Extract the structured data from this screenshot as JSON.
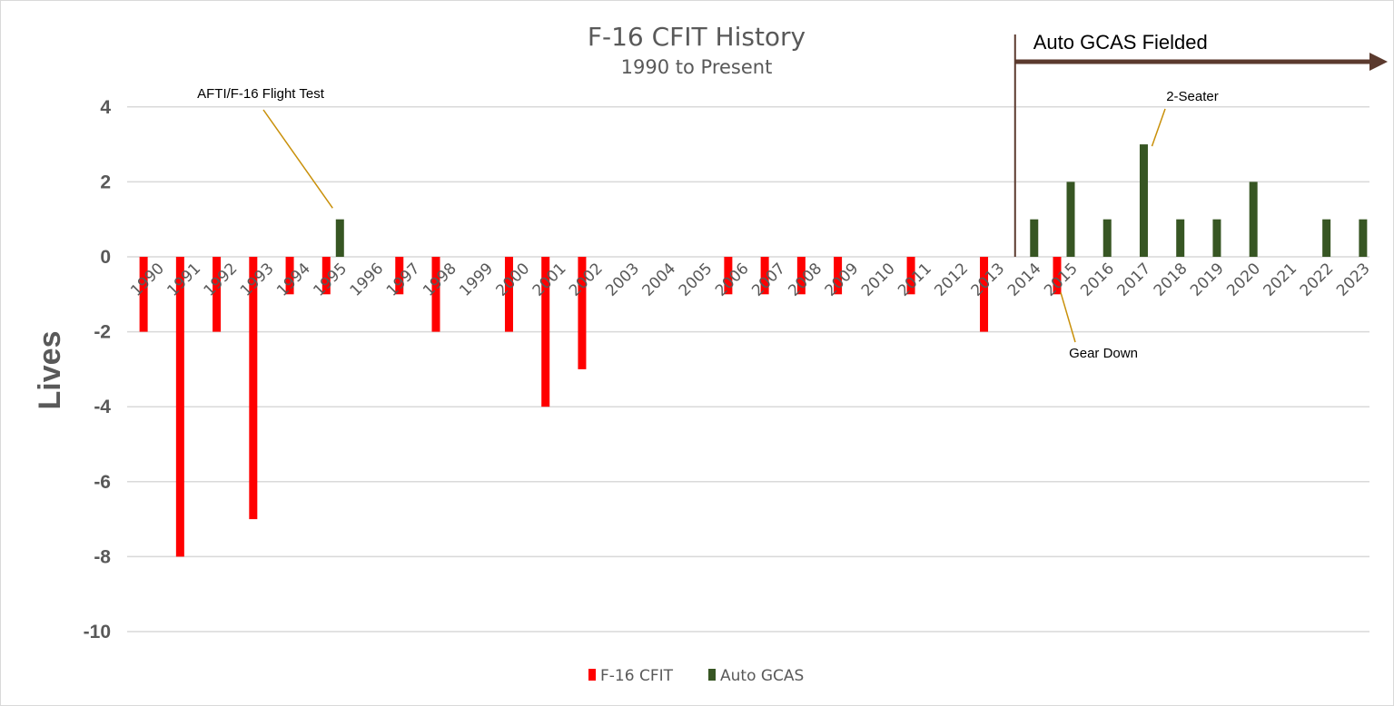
{
  "chart_data": {
    "type": "bar",
    "title": "F-16 CFIT History",
    "subtitle": "1990 to Present",
    "xlabel": "",
    "ylabel": "Lives",
    "ylim": [
      -10,
      4
    ],
    "yticks": [
      4,
      2,
      0,
      -2,
      -4,
      -6,
      -8,
      -10
    ],
    "grid": true,
    "legend_position": "bottom",
    "categories": [
      "1990",
      "1991",
      "1992",
      "1993",
      "1994",
      "1995",
      "1996",
      "1997",
      "1998",
      "1999",
      "2000",
      "2001",
      "2002",
      "2003",
      "2004",
      "2005",
      "2006",
      "2007",
      "2008",
      "2009",
      "2010",
      "2011",
      "2012",
      "2013",
      "2014",
      "2015",
      "2016",
      "2017",
      "2018",
      "2019",
      "2020",
      "2021",
      "2022",
      "2023"
    ],
    "series": [
      {
        "name": "F-16 CFIT",
        "color": "#ff0000",
        "values": [
          -2,
          -8,
          -2,
          -7,
          -1,
          -1,
          0,
          -1,
          -2,
          0,
          -2,
          -4,
          -3,
          0,
          0,
          0,
          -1,
          -1,
          -1,
          -1,
          0,
          -1,
          0,
          -2,
          0,
          -1,
          0,
          0,
          0,
          0,
          0,
          0,
          0,
          0
        ]
      },
      {
        "name": "Auto GCAS",
        "color": "#375623",
        "values": [
          0,
          0,
          0,
          0,
          0,
          1,
          0,
          0,
          0,
          0,
          0,
          0,
          0,
          0,
          0,
          0,
          0,
          0,
          0,
          0,
          0,
          0,
          0,
          0,
          1,
          2,
          1,
          3,
          1,
          1,
          2,
          0,
          1,
          1
        ]
      }
    ],
    "annotations": [
      {
        "text": "AFTI/F-16 Flight Test",
        "category": "1995",
        "series": "Auto GCAS"
      },
      {
        "text": "2-Seater",
        "category": "2017",
        "series": "Auto GCAS"
      },
      {
        "text": "Gear Down",
        "category": "2015",
        "series": "F-16 CFIT"
      }
    ],
    "marker": {
      "text": "Auto GCAS Fielded",
      "category": "2014",
      "color": "#5b3a2e"
    },
    "leader_color": "#c9900a"
  }
}
